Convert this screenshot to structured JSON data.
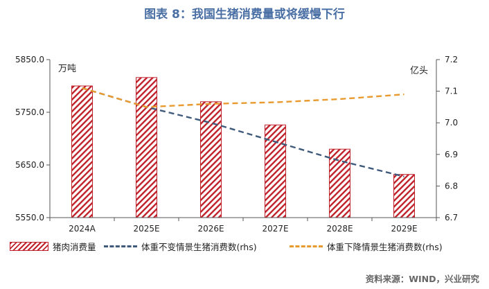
{
  "title": "图表 8：我国生猪消费量或将缓慢下行",
  "source": "资料来源：WIND，兴业研究",
  "chart_data": {
    "type": "bar",
    "categories": [
      "2024A",
      "2025E",
      "2026E",
      "2027E",
      "2028E",
      "2029E"
    ],
    "series": [
      {
        "name": "猪肉消费量",
        "type": "bar",
        "axis": "left",
        "color": "#c0202a",
        "values": [
          5800,
          5816,
          5770,
          5726,
          5680,
          5632
        ]
      },
      {
        "name": "体重不变情景生猪消费数(rhs)",
        "type": "line",
        "axis": "right",
        "color": "#3f5a7a",
        "values": [
          7.11,
          7.05,
          7.0,
          6.94,
          6.88,
          6.83
        ]
      },
      {
        "name": "体重下降情景生猪消费数(rhs)",
        "type": "line",
        "axis": "right",
        "color": "#e89a2e",
        "values": [
          7.11,
          7.05,
          7.06,
          7.065,
          7.075,
          7.09
        ]
      }
    ],
    "y_left": {
      "label": "万吨",
      "min": 5550,
      "max": 5850,
      "ticks": [
        "5550.0",
        "5650.0",
        "5750.0",
        "5850.0"
      ]
    },
    "y_right": {
      "label": "亿头",
      "min": 6.7,
      "max": 7.2,
      "ticks": [
        "6.7",
        "6.8",
        "6.9",
        "7.0",
        "7.1",
        "7.2"
      ]
    },
    "grid": false,
    "legend_position": "bottom"
  }
}
